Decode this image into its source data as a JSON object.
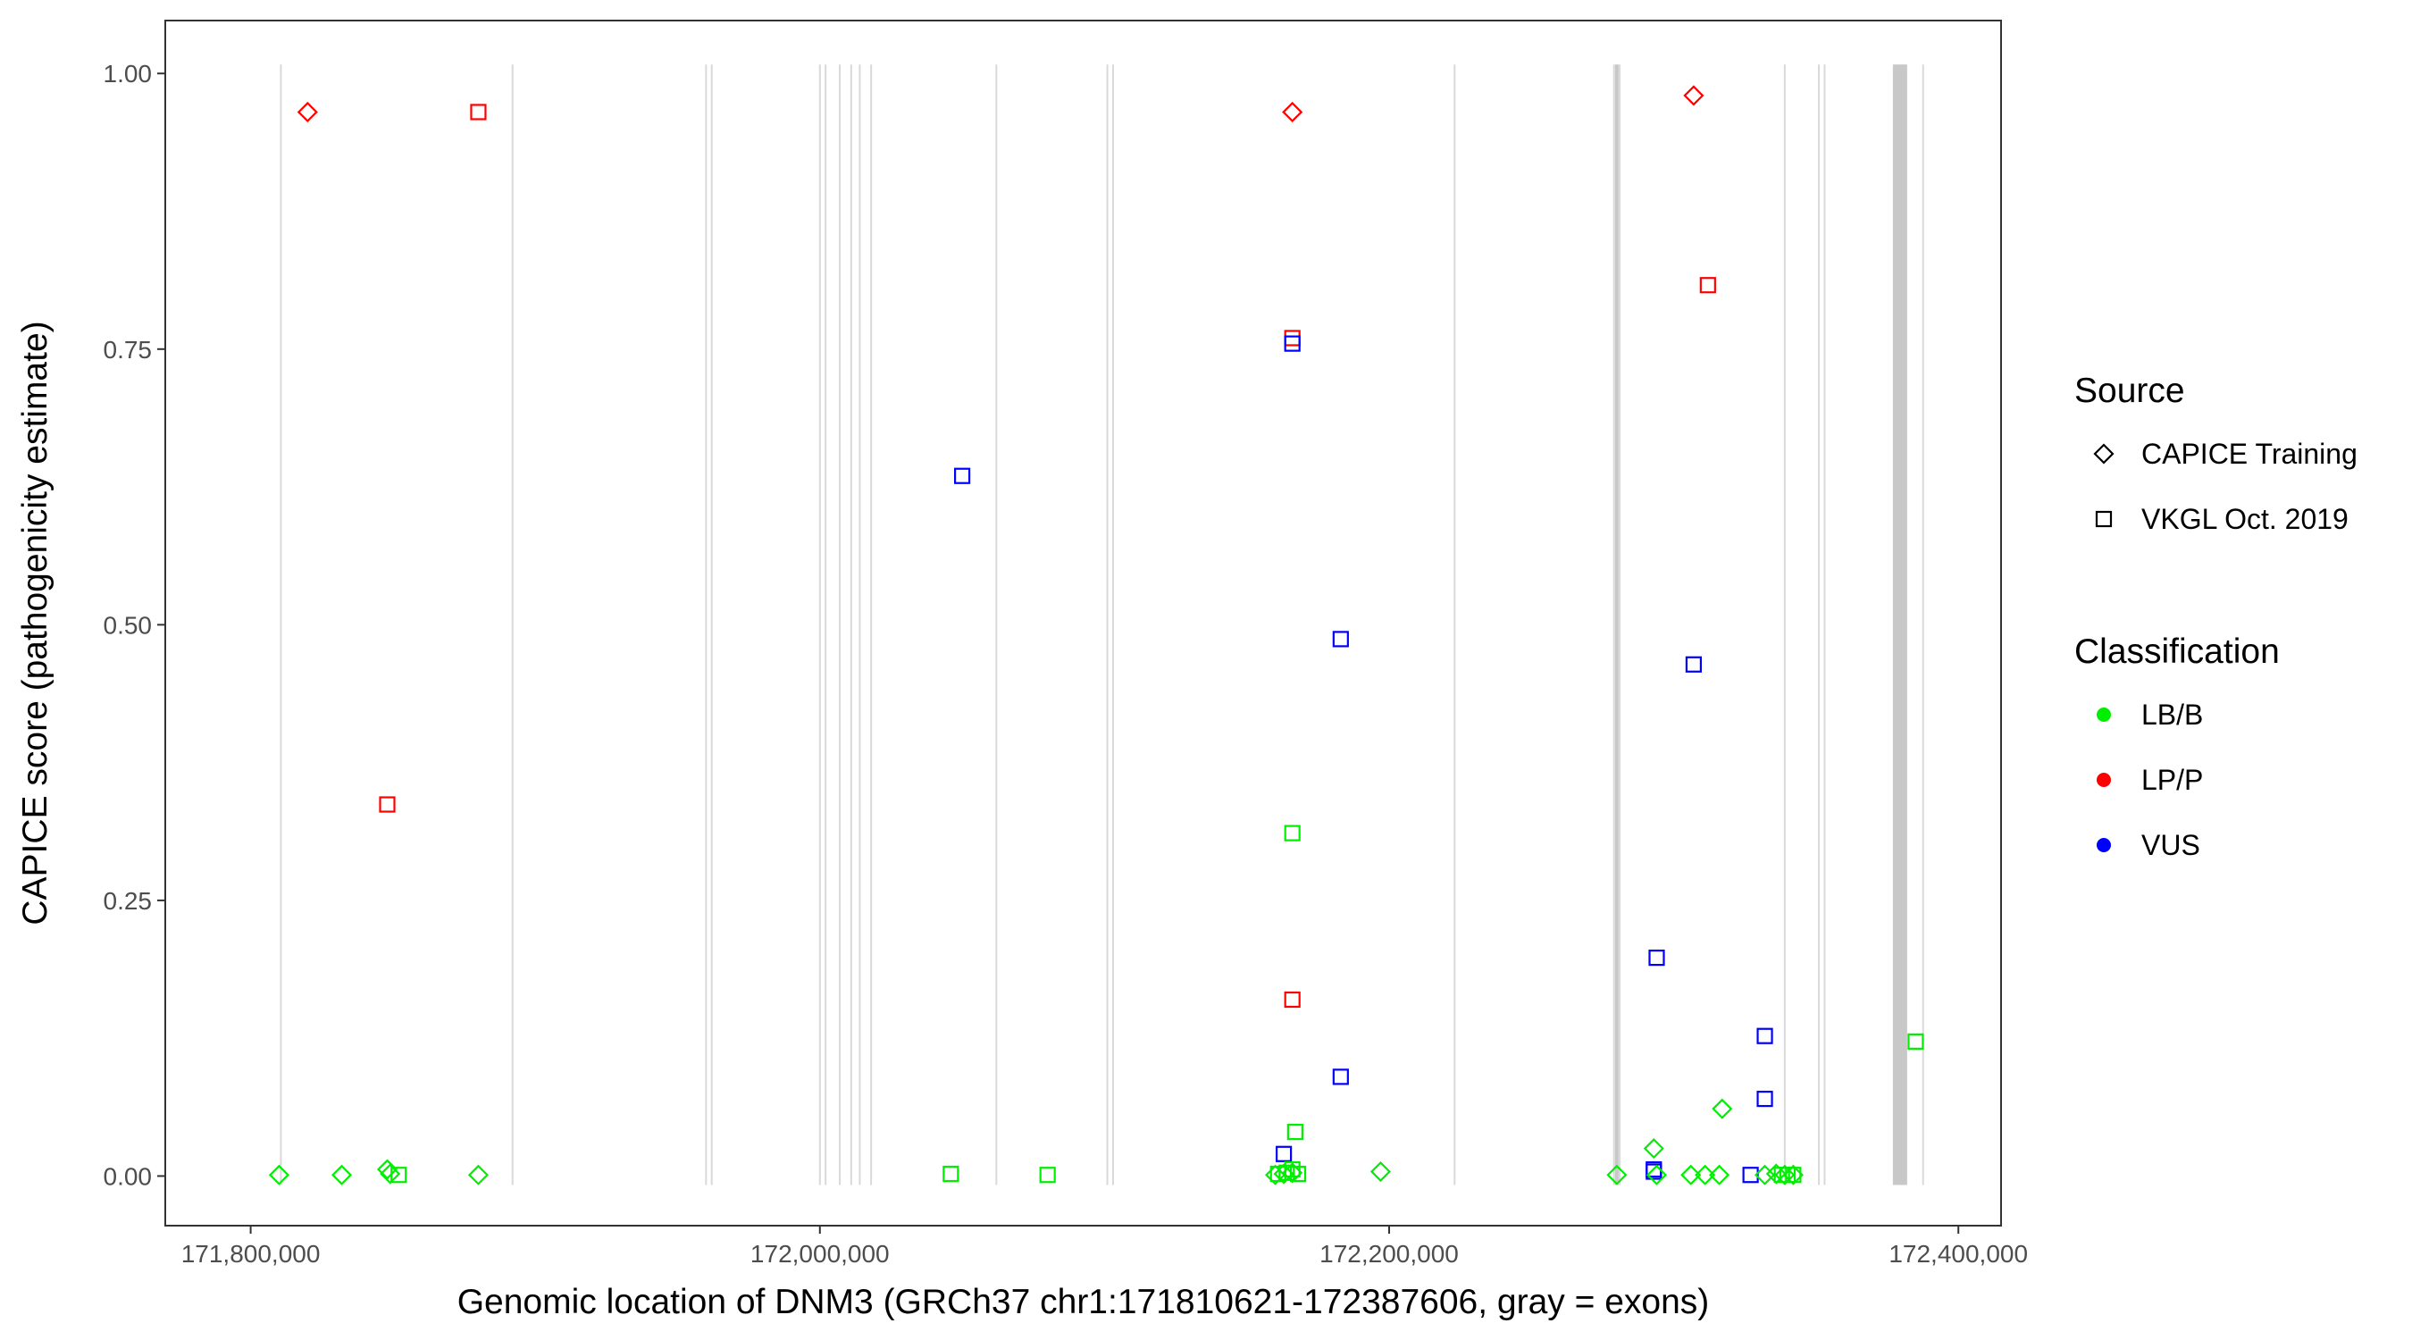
{
  "chart_data": {
    "type": "scatter",
    "title": "",
    "xlabel": "Genomic location of DNM3 (GRCh37 chr1:171810621-172387606, gray = exons)",
    "ylabel": "CAPICE score (pathogenicity estimate)",
    "xlim": [
      171770000,
      172415000
    ],
    "ylim": [
      -0.045,
      1.048
    ],
    "x_ticks": [
      171800000,
      172000000,
      172200000,
      172400000
    ],
    "x_tick_labels": [
      "171,800,000",
      "172,000,000",
      "172,200,000",
      "172,400,000"
    ],
    "y_ticks": [
      0.0,
      0.25,
      0.5,
      0.75,
      1.0
    ],
    "y_tick_labels": [
      "0.00",
      "0.25",
      "0.50",
      "0.75",
      "1.00"
    ],
    "grid": false,
    "exon_positions": [
      171810621,
      171892000,
      171960000,
      171962000,
      172000000,
      172002000,
      172007000,
      172011000,
      172014000,
      172018000,
      172062000,
      172101000,
      172103000,
      172223000,
      172279000,
      172280000,
      172281000,
      172339000,
      172351000,
      172353000,
      172378000,
      172379000,
      172380000,
      172381000,
      172387606
    ],
    "legend": {
      "position": "right",
      "source_title": "Source",
      "source_items": [
        {
          "label": "CAPICE Training",
          "shape": "diamond"
        },
        {
          "label": "VKGL Oct. 2019",
          "shape": "square"
        }
      ],
      "class_title": "Classification",
      "class_items": [
        {
          "label": "LB/B",
          "color": "#00ee00"
        },
        {
          "label": "LP/P",
          "color": "#ff0000"
        },
        {
          "label": "VUS",
          "color": "#0000ff"
        }
      ]
    },
    "series": [
      {
        "source": "CAPICE Training",
        "classification": "LP/P",
        "points": [
          [
            171820000,
            0.965
          ],
          [
            172166000,
            0.965
          ],
          [
            172307000,
            0.98
          ]
        ]
      },
      {
        "source": "VKGL Oct. 2019",
        "classification": "LP/P",
        "points": [
          [
            171880000,
            0.965
          ],
          [
            171848000,
            0.337
          ],
          [
            172166000,
            0.76
          ],
          [
            172312000,
            0.808
          ],
          [
            172166000,
            0.16
          ]
        ]
      },
      {
        "source": "VKGL Oct. 2019",
        "classification": "VUS",
        "points": [
          [
            172166000,
            0.755
          ],
          [
            172050000,
            0.635
          ],
          [
            172183000,
            0.487
          ],
          [
            172307000,
            0.464
          ],
          [
            172294000,
            0.198
          ],
          [
            172332000,
            0.127
          ],
          [
            172183000,
            0.09
          ],
          [
            172332000,
            0.07
          ],
          [
            172163000,
            0.02
          ],
          [
            172293000,
            0.006
          ],
          [
            172293000,
            0.004
          ],
          [
            172327000,
            0.001
          ]
        ]
      },
      {
        "source": "VKGL Oct. 2019",
        "classification": "LB/B",
        "points": [
          [
            172166000,
            0.311
          ],
          [
            172167000,
            0.04
          ],
          [
            172385000,
            0.122
          ],
          [
            172046000,
            0.002
          ],
          [
            172080000,
            0.001
          ],
          [
            171852000,
            0.001
          ],
          [
            172161000,
            0.002
          ],
          [
            172164000,
            0.003
          ],
          [
            172166000,
            0.006
          ],
          [
            172168000,
            0.002
          ],
          [
            172338000,
            0.001
          ],
          [
            172340000,
            0.001
          ],
          [
            172342000,
            0.001
          ]
        ]
      },
      {
        "source": "CAPICE Training",
        "classification": "LB/B",
        "points": [
          [
            171810000,
            0.001
          ],
          [
            171832000,
            0.001
          ],
          [
            171848000,
            0.006
          ],
          [
            171849000,
            0.002
          ],
          [
            171880000,
            0.001
          ],
          [
            172160000,
            0.001
          ],
          [
            172163000,
            0.002
          ],
          [
            172166000,
            0.003
          ],
          [
            172197000,
            0.004
          ],
          [
            172280000,
            0.001
          ],
          [
            172293000,
            0.025
          ],
          [
            172294000,
            0.001
          ],
          [
            172306000,
            0.001
          ],
          [
            172311000,
            0.001
          ],
          [
            172316000,
            0.001
          ],
          [
            172317000,
            0.061
          ],
          [
            172332000,
            0.001
          ],
          [
            172336000,
            0.002
          ],
          [
            172339000,
            0.001
          ],
          [
            172342000,
            0.001
          ]
        ]
      }
    ]
  }
}
